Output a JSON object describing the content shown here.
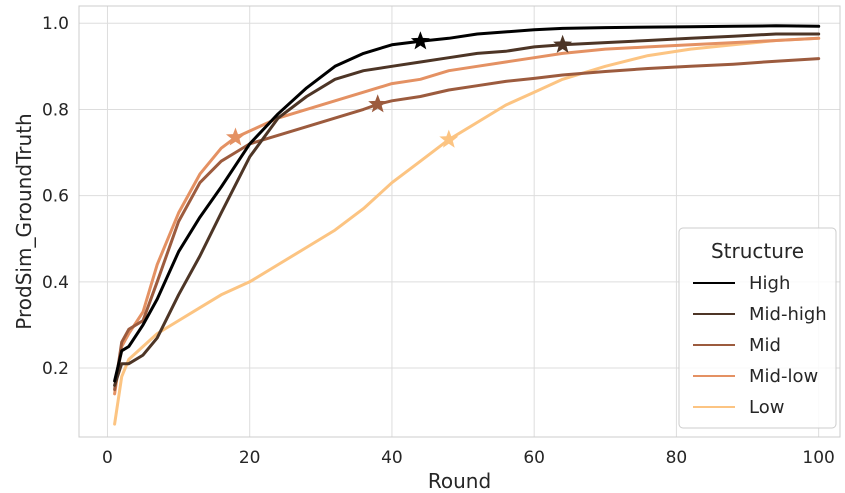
{
  "chart_data": {
    "type": "line",
    "xlabel": "Round",
    "ylabel": "ProdSim_GroundTruth",
    "xlim": [
      -4,
      103
    ],
    "ylim": [
      0.04,
      1.04
    ],
    "xticks": [
      0,
      20,
      40,
      60,
      80,
      100
    ],
    "yticks": [
      0.2,
      0.4,
      0.6,
      0.8,
      1.0
    ],
    "xtick_labels": [
      "0",
      "20",
      "40",
      "60",
      "80",
      "100"
    ],
    "ytick_labels": [
      "0.2",
      "0.4",
      "0.6",
      "0.8",
      "1.0"
    ],
    "grid": true,
    "legend": {
      "title": "Structure",
      "placement": "lower-right"
    },
    "series": [
      {
        "name": "High",
        "color": "#000000",
        "x": [
          1,
          2,
          3,
          5,
          7,
          10,
          13,
          16,
          20,
          24,
          28,
          32,
          36,
          40,
          44,
          48,
          52,
          56,
          60,
          64,
          70,
          76,
          82,
          88,
          94,
          100
        ],
        "y": [
          0.17,
          0.24,
          0.25,
          0.3,
          0.36,
          0.47,
          0.55,
          0.62,
          0.72,
          0.79,
          0.85,
          0.9,
          0.93,
          0.95,
          0.958,
          0.965,
          0.975,
          0.98,
          0.985,
          0.988,
          0.99,
          0.991,
          0.992,
          0.993,
          0.994,
          0.993
        ],
        "marker": {
          "x": 44,
          "y": 0.958
        }
      },
      {
        "name": "Mid-high",
        "color": "#4d3526",
        "x": [
          1,
          2,
          3,
          5,
          7,
          10,
          13,
          16,
          20,
          24,
          28,
          32,
          36,
          40,
          44,
          48,
          52,
          56,
          60,
          64,
          70,
          76,
          82,
          88,
          94,
          100
        ],
        "y": [
          0.16,
          0.21,
          0.21,
          0.23,
          0.27,
          0.37,
          0.46,
          0.56,
          0.69,
          0.78,
          0.83,
          0.87,
          0.89,
          0.9,
          0.91,
          0.92,
          0.93,
          0.935,
          0.945,
          0.95,
          0.955,
          0.96,
          0.965,
          0.97,
          0.975,
          0.975
        ],
        "marker": {
          "x": 64,
          "y": 0.95
        }
      },
      {
        "name": "Mid",
        "color": "#9c5b3e",
        "x": [
          1,
          2,
          3,
          5,
          7,
          10,
          13,
          16,
          18,
          20,
          24,
          28,
          32,
          36,
          38,
          40,
          44,
          48,
          52,
          56,
          60,
          64,
          70,
          76,
          82,
          88,
          94,
          100
        ],
        "y": [
          0.15,
          0.26,
          0.29,
          0.31,
          0.4,
          0.54,
          0.63,
          0.68,
          0.7,
          0.72,
          0.74,
          0.76,
          0.78,
          0.8,
          0.812,
          0.82,
          0.83,
          0.845,
          0.855,
          0.865,
          0.872,
          0.88,
          0.888,
          0.895,
          0.9,
          0.905,
          0.912,
          0.918
        ],
        "marker": {
          "x": 38,
          "y": 0.812
        }
      },
      {
        "name": "Mid-low",
        "color": "#e49163",
        "x": [
          1,
          2,
          3,
          5,
          7,
          10,
          13,
          16,
          18,
          20,
          24,
          28,
          32,
          36,
          40,
          44,
          48,
          52,
          56,
          60,
          64,
          70,
          76,
          82,
          88,
          94,
          100
        ],
        "y": [
          0.14,
          0.25,
          0.28,
          0.33,
          0.44,
          0.56,
          0.65,
          0.71,
          0.735,
          0.75,
          0.78,
          0.8,
          0.82,
          0.84,
          0.86,
          0.87,
          0.89,
          0.9,
          0.91,
          0.92,
          0.93,
          0.94,
          0.945,
          0.95,
          0.955,
          0.96,
          0.965
        ],
        "marker": {
          "x": 18,
          "y": 0.735
        }
      },
      {
        "name": "Low",
        "color": "#fcc482",
        "x": [
          1,
          2,
          3,
          5,
          7,
          10,
          13,
          16,
          20,
          24,
          28,
          32,
          36,
          40,
          44,
          48,
          52,
          56,
          60,
          64,
          70,
          76,
          82,
          88,
          94,
          100
        ],
        "y": [
          0.07,
          0.18,
          0.22,
          0.25,
          0.28,
          0.31,
          0.34,
          0.37,
          0.4,
          0.44,
          0.48,
          0.52,
          0.57,
          0.63,
          0.68,
          0.73,
          0.77,
          0.81,
          0.84,
          0.87,
          0.9,
          0.925,
          0.94,
          0.95,
          0.96,
          0.965
        ],
        "marker": {
          "x": 48,
          "y": 0.73
        }
      }
    ]
  }
}
